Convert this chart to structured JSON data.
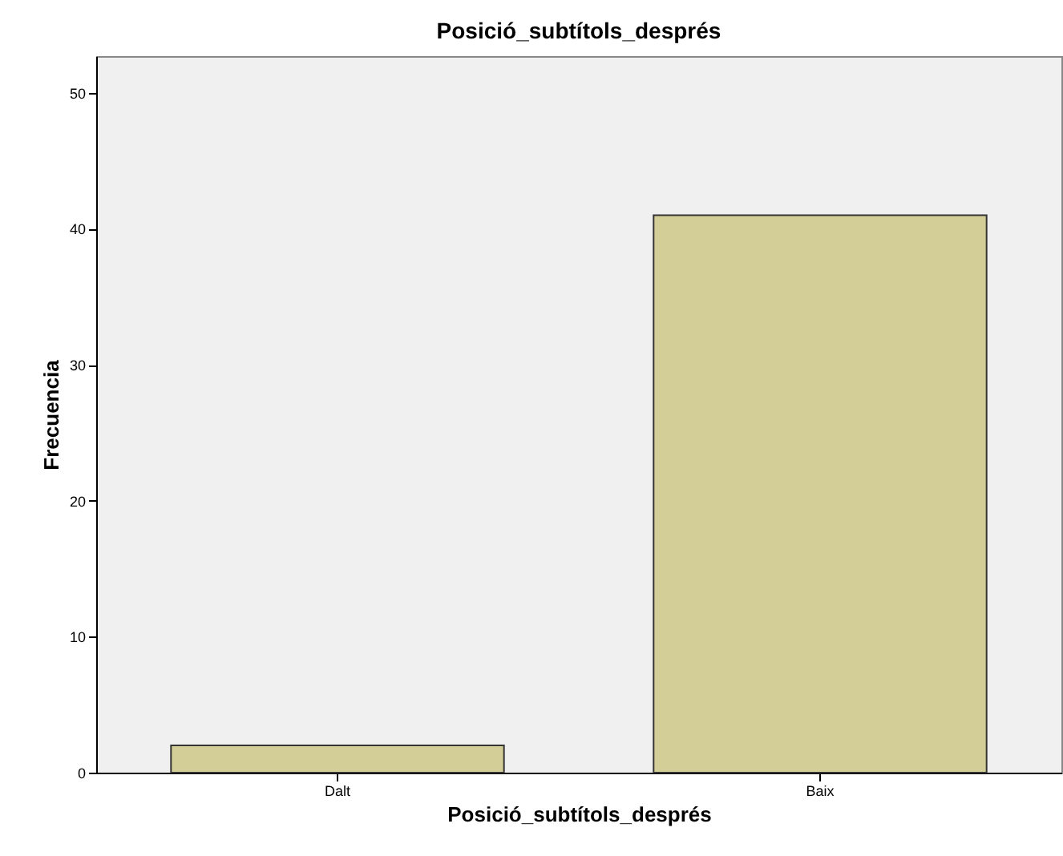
{
  "chart_data": {
    "type": "bar",
    "title": "Posició_subtítols_després",
    "xlabel": "Posició_subtítols_després",
    "ylabel": "Frecuencia",
    "categories": [
      "Dalt",
      "Baix"
    ],
    "values": [
      2,
      41
    ],
    "color": "#d3ce97",
    "ylim": [
      0,
      52.7
    ],
    "yticks": [
      0,
      10,
      20,
      30,
      40,
      50
    ],
    "grid": false
  }
}
